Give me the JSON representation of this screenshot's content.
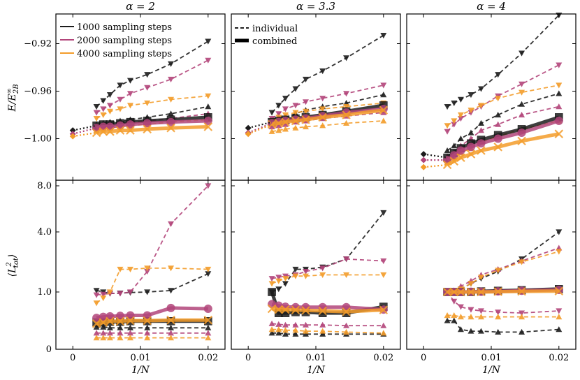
{
  "figure": {
    "columns": [
      {
        "title": "α = 2"
      },
      {
        "title": "α = 3.3"
      },
      {
        "title": "α = 4"
      }
    ],
    "rows": [
      {
        "ylabel": "E/E∞2B",
        "ylabel_main": "E/E",
        "ylabel_sup": "∞",
        "ylabel_sub": "2B",
        "ylim": [
          -1.035,
          -0.895
        ],
        "yticks": [
          -0.92,
          -0.96,
          -1.0
        ],
        "ytick_labels": [
          "−0.92",
          "−0.96",
          "−1.00"
        ]
      },
      {
        "ylabel": "⟨L²tot⟩",
        "ylabel_main": "⟨L",
        "ylabel_sup": "2",
        "ylabel_sub": "tot",
        "ylabel_end": "⟩",
        "ylim": [
          0.0,
          8.0
        ],
        "yticks": [
          0.0,
          1.0,
          4.0,
          8.0
        ],
        "ytick_labels": [
          "0",
          "1.0",
          "4.0",
          "8.0"
        ]
      }
    ],
    "x_axis": {
      "label": "1/N",
      "xlim": [
        -0.0025,
        0.0225
      ],
      "ticks": [
        0,
        0.01,
        0.02
      ],
      "tick_labels": [
        "0",
        "0.01",
        "0.02"
      ]
    },
    "legends": {
      "steps": [
        {
          "label": "1000 sampling steps",
          "color": "#1c1c1c"
        },
        {
          "label": "2000 sampling steps",
          "color": "#b2457a"
        },
        {
          "label": "4000 sampling steps",
          "color": "#f39c2a"
        }
      ],
      "styles": [
        {
          "label": "individual"
        },
        {
          "label": "combined"
        }
      ]
    },
    "colors": {
      "1000": "#1c1c1c",
      "2000": "#b2457a",
      "4000": "#f39c2a"
    }
  },
  "chart_data": {
    "type": "line",
    "x": [
      0.0035,
      0.0045,
      0.0055,
      0.007,
      0.0085,
      0.011,
      0.0145,
      0.02
    ],
    "panels": [
      {
        "column": "α = 2",
        "row": "energy",
        "individual": {
          "1000": [
            [
              -0.973,
              -0.968,
              -0.963,
              -0.955,
              -0.951,
              -0.946,
              -0.937,
              -0.918
            ],
            [
              -0.988,
              -0.987,
              -0.986,
              -0.985,
              -0.984,
              -0.982,
              -0.979,
              -0.973
            ]
          ],
          "2000": [
            [
              -0.978,
              -0.975,
              -0.972,
              -0.967,
              -0.962,
              -0.957,
              -0.95,
              -0.934
            ],
            [
              -0.99,
              -0.989,
              -0.988,
              -0.987,
              -0.986,
              -0.985,
              -0.983,
              -0.979
            ]
          ],
          "4000": [
            [
              -0.983,
              -0.98,
              -0.977,
              -0.975,
              -0.972,
              -0.97,
              -0.967,
              -0.964
            ],
            [
              -0.993,
              -0.992,
              -0.991,
              -0.99,
              -0.989,
              -0.988,
              -0.986,
              -0.984
            ]
          ]
        },
        "combined": {
          "1000": [
            -0.989,
            -0.988,
            -0.988,
            -0.987,
            -0.986,
            -0.985,
            -0.984,
            -0.982
          ],
          "2000": [
            -0.991,
            -0.99,
            -0.99,
            -0.989,
            -0.988,
            -0.987,
            -0.986,
            -0.985
          ],
          "4000": [
            -0.995,
            -0.994,
            -0.994,
            -0.993,
            -0.993,
            -0.992,
            -0.991,
            -0.99
          ]
        },
        "extrapolation": {
          "1000": -0.993,
          "2000": -0.996,
          "4000": -0.998
        }
      },
      {
        "column": "α = 3.3",
        "row": "energy",
        "individual": {
          "1000": [
            [
              -0.978,
              -0.972,
              -0.966,
              -0.958,
              -0.95,
              -0.943,
              -0.932,
              -0.913
            ],
            [
              -0.986,
              -0.984,
              -0.982,
              -0.979,
              -0.976,
              -0.973,
              -0.97,
              -0.963
            ]
          ],
          "2000": [
            [
              -0.983,
              -0.979,
              -0.975,
              -0.972,
              -0.969,
              -0.966,
              -0.962,
              -0.955
            ],
            [
              -0.99,
              -0.989,
              -0.988,
              -0.986,
              -0.985,
              -0.983,
              -0.981,
              -0.978
            ]
          ],
          "4000": [
            [
              -0.985,
              -0.982,
              -0.98,
              -0.978,
              -0.977,
              -0.975,
              -0.973,
              -0.97
            ],
            [
              -0.994,
              -0.993,
              -0.992,
              -0.991,
              -0.99,
              -0.989,
              -0.987,
              -0.985
            ]
          ]
        },
        "combined": {
          "1000": [
            -0.986,
            -0.985,
            -0.984,
            -0.983,
            -0.982,
            -0.98,
            -0.977,
            -0.972
          ],
          "2000": [
            -0.987,
            -0.986,
            -0.985,
            -0.984,
            -0.983,
            -0.981,
            -0.978,
            -0.975
          ],
          "4000": [
            -0.988,
            -0.987,
            -0.986,
            -0.985,
            -0.984,
            -0.982,
            -0.98,
            -0.976
          ]
        },
        "extrapolation": {
          "1000": -0.991,
          "2000": -0.995,
          "4000": -0.996
        }
      },
      {
        "column": "α = 4",
        "row": "energy",
        "individual": {
          "1000": [
            [
              -0.973,
              -0.97,
              -0.967,
              -0.963,
              -0.958,
              -0.946,
              -0.928,
              -0.896
            ],
            [
              -1.01,
              -1.006,
              -1.0,
              -0.995,
              -0.987,
              -0.98,
              -0.971,
              -0.962
            ]
          ],
          "2000": [
            [
              -0.994,
              -0.988,
              -0.983,
              -0.978,
              -0.973,
              -0.964,
              -0.954,
              -0.938
            ],
            [
              -1.015,
              -1.011,
              -1.006,
              -1.0,
              -0.993,
              -0.988,
              -0.98,
              -0.973
            ]
          ],
          "4000": [
            [
              -0.989,
              -0.985,
              -0.98,
              -0.976,
              -0.972,
              -0.966,
              -0.961,
              -0.955
            ],
            [
              -1.02,
              -1.016,
              -1.012,
              -1.008,
              -1.003,
              -0.998,
              -0.992,
              -0.985
            ]
          ]
        },
        "combined": {
          "1000": [
            -1.016,
            -1.012,
            -1.008,
            -1.004,
            -1.001,
            -0.997,
            -0.992,
            -0.982
          ],
          "2000": [
            -1.018,
            -1.014,
            -1.01,
            -1.007,
            -1.004,
            -1.0,
            -0.995,
            -0.985
          ],
          "4000": [
            -1.022,
            -1.019,
            -1.016,
            -1.013,
            -1.01,
            -1.007,
            -1.002,
            -0.996
          ]
        },
        "extrapolation": {
          "1000": -1.013,
          "2000": -1.018,
          "4000": -1.024
        }
      },
      {
        "column": "α = 2",
        "row": "L2",
        "individual": {
          "1000": [
            [
              1.05,
              1.0,
              0.95,
              0.96,
              0.98,
              1.0,
              1.05,
              1.7
            ],
            [
              0.15,
              0.15,
              0.14,
              0.14,
              0.14,
              0.14,
              0.14,
              0.14
            ]
          ],
          "2000": [
            [
              0.9,
              0.92,
              0.95,
              0.95,
              1.0,
              1.8,
              4.6,
              8.0
            ],
            [
              0.08,
              0.08,
              0.08,
              0.08,
              0.08,
              0.08,
              0.08,
              0.08
            ]
          ],
          "4000": [
            [
              0.65,
              0.8,
              1.0,
              1.9,
              1.9,
              1.95,
              1.95,
              1.9
            ],
            [
              0.04,
              0.04,
              0.04,
              0.04,
              0.04,
              0.04,
              0.04,
              0.04
            ]
          ]
        },
        "combined": {
          "1000": [
            0.22,
            0.22,
            0.23,
            0.23,
            0.24,
            0.24,
            0.24,
            0.24
          ],
          "2000": [
            0.3,
            0.32,
            0.33,
            0.34,
            0.35,
            0.35,
            0.52,
            0.5
          ],
          "4000": [
            0.2,
            0.22,
            0.24,
            0.24,
            0.25,
            0.25,
            0.26,
            0.26
          ]
        }
      },
      {
        "column": "α = 3.3",
        "row": "L2",
        "individual": {
          "1000": [
            [
              1.0,
              1.1,
              1.3,
              1.9,
              1.9,
              2.0,
              2.4,
              5.5
            ],
            [
              0.08,
              0.08,
              0.07,
              0.07,
              0.07,
              0.07,
              0.07,
              0.07
            ]
          ],
          "2000": [
            [
              1.5,
              1.55,
              1.6,
              1.65,
              1.8,
              1.95,
              2.4,
              2.3
            ],
            [
              0.2,
              0.19,
              0.18,
              0.18,
              0.18,
              0.18,
              0.17,
              0.17
            ]
          ],
          "4000": [
            [
              1.3,
              1.4,
              1.5,
              1.6,
              1.6,
              1.65,
              1.65,
              1.65
            ],
            [
              0.12,
              0.12,
              0.11,
              0.11,
              0.1,
              0.1,
              0.09,
              0.08
            ]
          ]
        },
        "combined": {
          "1000": [
            1.0,
            0.4,
            0.4,
            0.42,
            0.42,
            0.4,
            0.4,
            0.55
          ],
          "2000": [
            0.62,
            0.58,
            0.55,
            0.54,
            0.54,
            0.54,
            0.54,
            0.48
          ],
          "4000": [
            0.5,
            0.48,
            0.48,
            0.47,
            0.46,
            0.45,
            0.43,
            0.47
          ]
        }
      },
      {
        "column": "α = 4",
        "row": "L2",
        "individual": {
          "1000": [
            [
              1.0,
              1.0,
              1.1,
              1.3,
              1.5,
              1.8,
              2.4,
              4.0
            ],
            [
              0.25,
              0.25,
              0.12,
              0.1,
              0.1,
              0.09,
              0.09,
              0.12
            ]
          ],
          "2000": [
            [
              1.0,
              0.7,
              0.55,
              0.48,
              0.45,
              0.42,
              0.4,
              0.45
            ],
            [
              1.0,
              1.05,
              1.2,
              1.4,
              1.65,
              1.9,
              2.3,
              3.0
            ]
          ],
          "4000": [
            [
              1.0,
              1.0,
              1.1,
              1.3,
              1.55,
              1.85,
              2.25,
              2.8
            ],
            [
              0.35,
              0.35,
              0.32,
              0.32,
              0.32,
              0.32,
              0.32,
              0.32
            ]
          ]
        },
        "combined": {
          "1000": [
            1.0,
            1.0,
            1.0,
            1.0,
            1.02,
            1.04,
            1.06,
            1.1
          ],
          "2000": [
            1.0,
            1.0,
            1.0,
            1.01,
            1.01,
            1.02,
            1.04,
            1.07
          ],
          "4000": [
            1.0,
            1.0,
            1.0,
            1.0,
            1.0,
            1.01,
            1.02,
            1.03
          ]
        }
      }
    ]
  }
}
